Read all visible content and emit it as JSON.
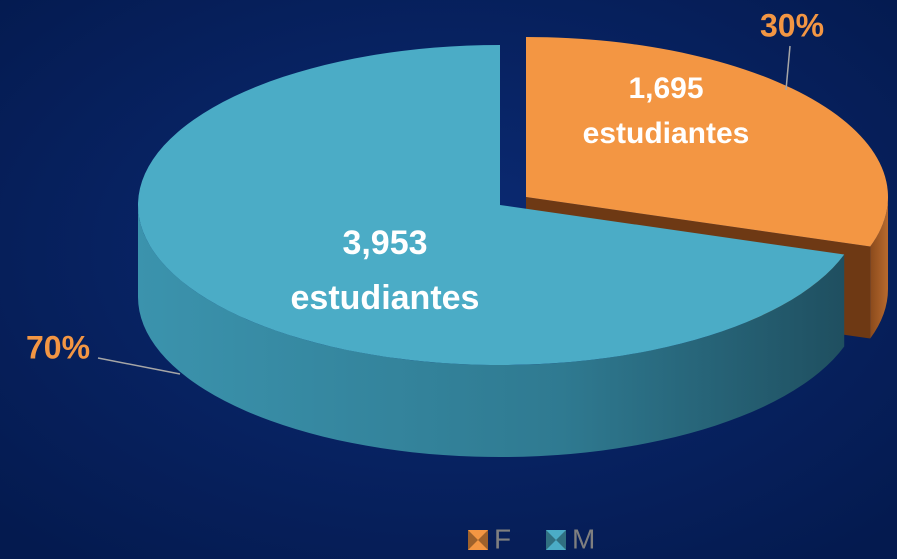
{
  "chart_data": {
    "type": "pie",
    "categories": [
      "F",
      "M"
    ],
    "values": [
      1695,
      3953
    ],
    "value_labels": [
      "1,695",
      "3,953"
    ],
    "unit": "estudiantes",
    "percent_labels": [
      "30%",
      "70%"
    ],
    "colors": [
      "#f39643",
      "#4bacc6"
    ],
    "legend": "bottom"
  }
}
